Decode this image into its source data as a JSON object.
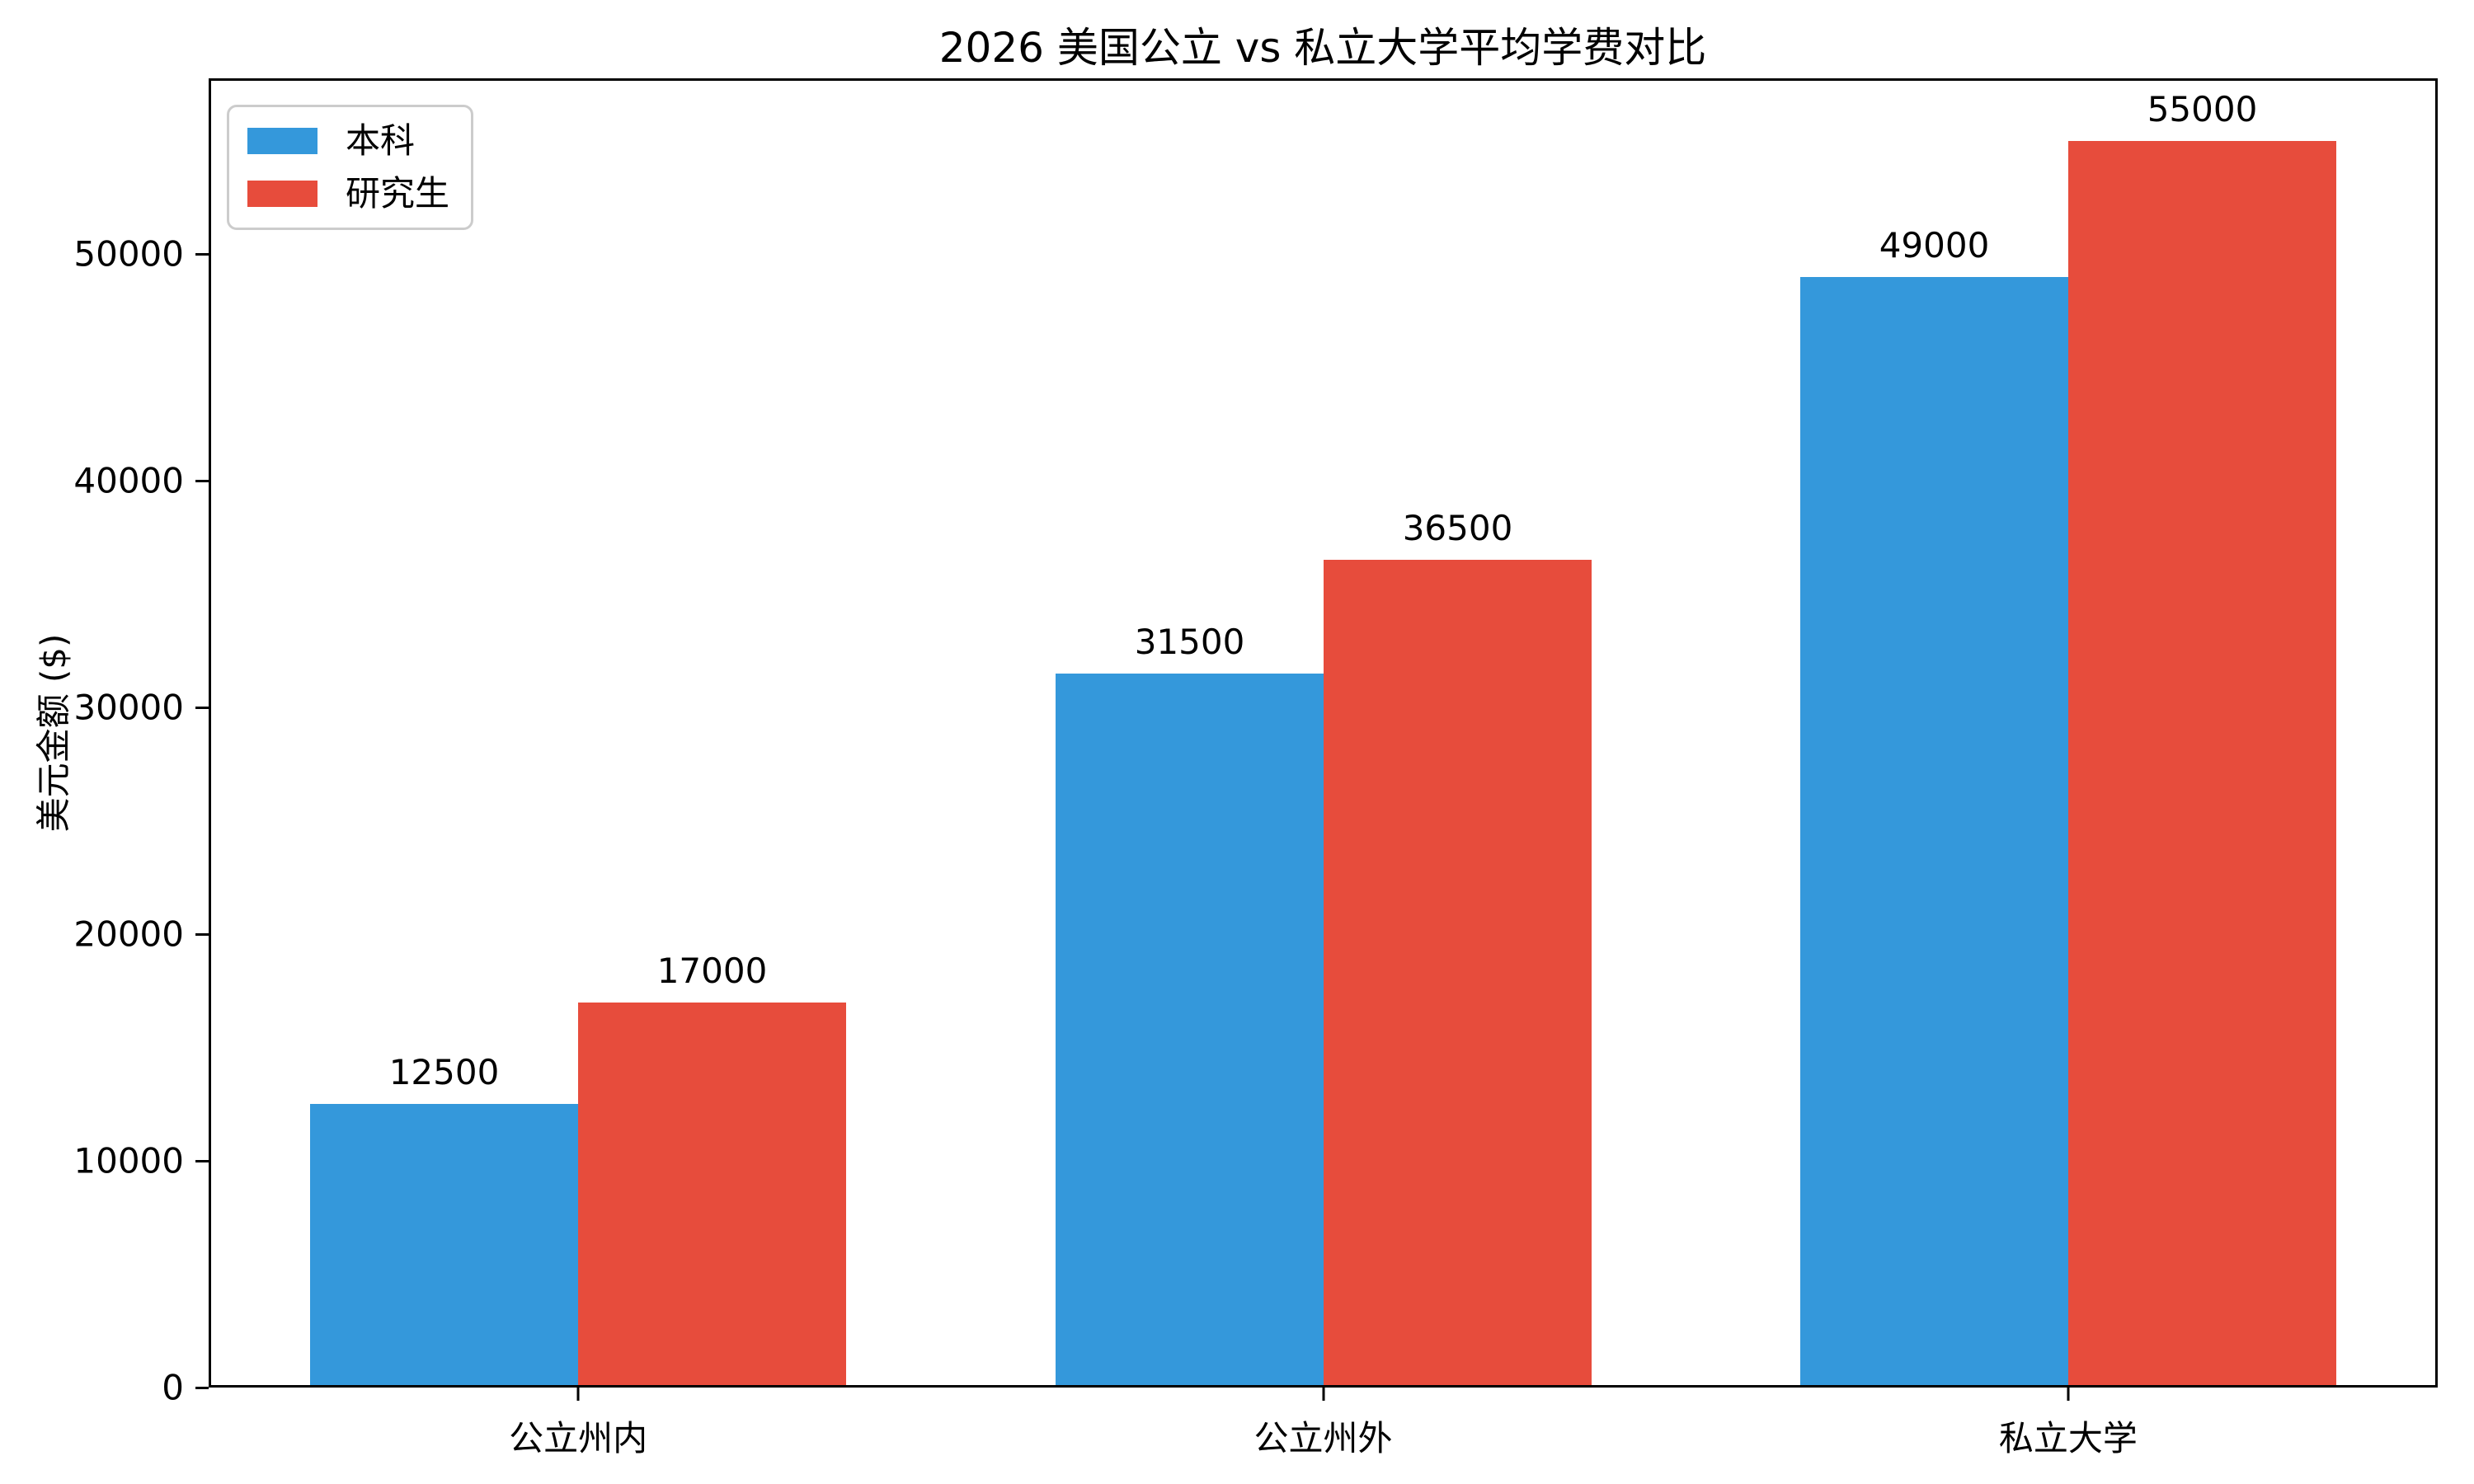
{
  "figure": {
    "title": "2026 美国公立 vs 私立大学平均学费对比",
    "background_color": "#ffffff"
  },
  "chart_data": {
    "type": "bar",
    "title": "2026 美国公立 vs 私立大学平均学费对比",
    "categories": [
      "公立州内",
      "公立州外",
      "私立大学"
    ],
    "series": [
      {
        "name": "本科",
        "color": "#3498db",
        "values": [
          12500,
          31500,
          49000
        ]
      },
      {
        "name": "研究生",
        "color": "#e74c3c",
        "values": [
          17000,
          36500,
          55000
        ]
      }
    ],
    "xlabel": "",
    "ylabel": "美元金额 ($)",
    "yticks": [
      0,
      10000,
      20000,
      30000,
      40000,
      50000
    ],
    "ylim": [
      0,
      57750
    ],
    "grid": false,
    "show_value_labels": true,
    "legend_position": "upper-left",
    "axis_color": "#000000",
    "legend_border_color": "#cccccc"
  }
}
